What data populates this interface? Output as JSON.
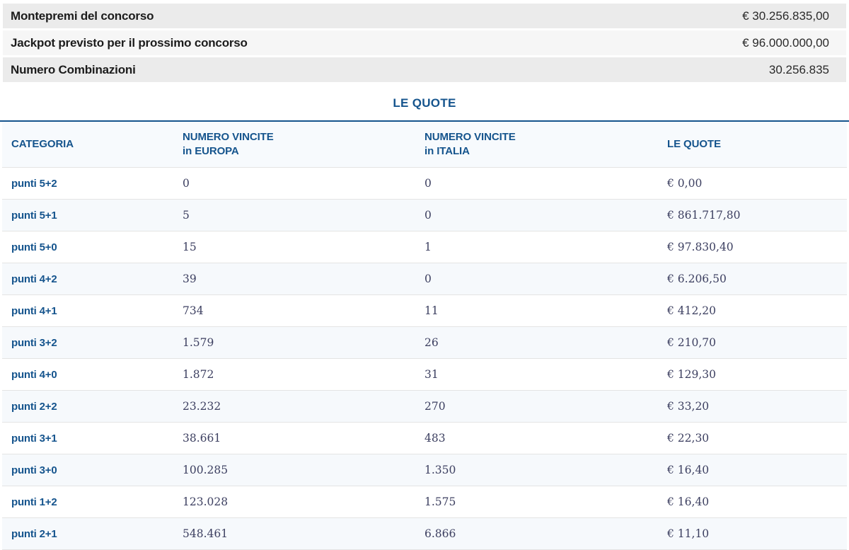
{
  "summary": {
    "rows": [
      {
        "label": "Montepremi del concorso",
        "value": "€ 30.256.835,00"
      },
      {
        "label": "Jackpot previsto per il prossimo concorso",
        "value": "€ 96.000.000,00"
      },
      {
        "label": "Numero Combinazioni",
        "value": "30.256.835"
      }
    ]
  },
  "section_title": "LE QUOTE",
  "table": {
    "headers": [
      {
        "line1": "CATEGORIA",
        "line2": ""
      },
      {
        "line1": "NUMERO VINCITE",
        "line2": "in EUROPA"
      },
      {
        "line1": "NUMERO VINCITE",
        "line2": "in ITALIA"
      },
      {
        "line1": "LE QUOTE",
        "line2": ""
      }
    ],
    "rows": [
      {
        "categoria": "punti 5+2",
        "vincite_europa": "0",
        "vincite_italia": "0",
        "quota": "€ 0,00"
      },
      {
        "categoria": "punti 5+1",
        "vincite_europa": "5",
        "vincite_italia": "0",
        "quota": "€ 861.717,80"
      },
      {
        "categoria": "punti 5+0",
        "vincite_europa": "15",
        "vincite_italia": "1",
        "quota": "€ 97.830,40"
      },
      {
        "categoria": "punti 4+2",
        "vincite_europa": "39",
        "vincite_italia": "0",
        "quota": "€ 6.206,50"
      },
      {
        "categoria": "punti 4+1",
        "vincite_europa": "734",
        "vincite_italia": "11",
        "quota": "€ 412,20"
      },
      {
        "categoria": "punti 3+2",
        "vincite_europa": "1.579",
        "vincite_italia": "26",
        "quota": "€ 210,70"
      },
      {
        "categoria": "punti 4+0",
        "vincite_europa": "1.872",
        "vincite_italia": "31",
        "quota": "€ 129,30"
      },
      {
        "categoria": "punti 2+2",
        "vincite_europa": "23.232",
        "vincite_italia": "270",
        "quota": "€ 33,20"
      },
      {
        "categoria": "punti 3+1",
        "vincite_europa": "38.661",
        "vincite_italia": "483",
        "quota": "€ 22,30"
      },
      {
        "categoria": "punti 3+0",
        "vincite_europa": "100.285",
        "vincite_italia": "1.350",
        "quota": "€ 16,40"
      },
      {
        "categoria": "punti 1+2",
        "vincite_europa": "123.028",
        "vincite_italia": "1.575",
        "quota": "€ 16,40"
      },
      {
        "categoria": "punti 2+1",
        "vincite_europa": "548.461",
        "vincite_italia": "6.866",
        "quota": "€ 11,10"
      }
    ]
  },
  "colors": {
    "accent_blue": "#15548d",
    "summary_bg_dark": "#ebebeb",
    "summary_bg_light": "#f6f6f6",
    "table_header_bg": "#f7fafd",
    "table_stripe_bg": "#f6f9fc",
    "number_text": "#3c3f60"
  }
}
